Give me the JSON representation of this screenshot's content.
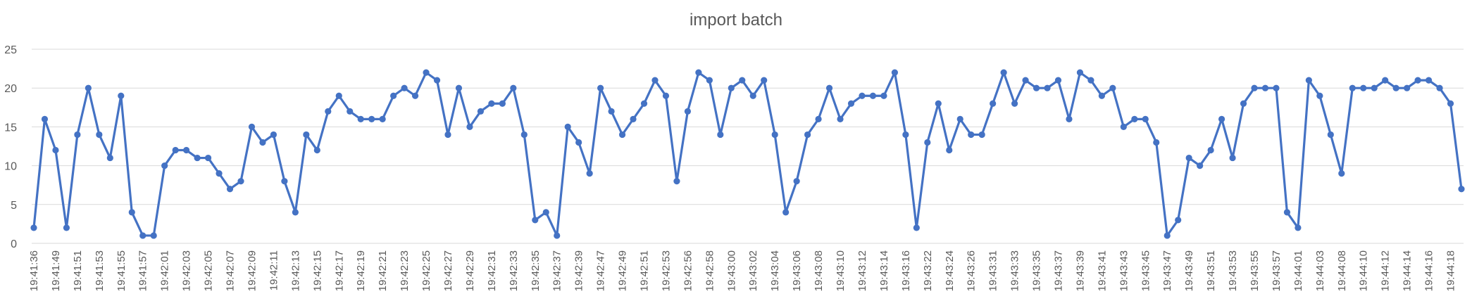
{
  "chart_data": {
    "type": "line",
    "title": "import batch",
    "xlabel": "",
    "ylabel": "",
    "ylim": [
      0,
      25
    ],
    "yticks": [
      0,
      5,
      10,
      15,
      20,
      25
    ],
    "grid": true,
    "legend": "none",
    "color": "#4472c4",
    "values": [
      2,
      16,
      12,
      2,
      14,
      20,
      14,
      11,
      19,
      4,
      1,
      1,
      10,
      12,
      12,
      11,
      11,
      9,
      7,
      8,
      15,
      13,
      14,
      8,
      4,
      14,
      12,
      17,
      19,
      17,
      16,
      16,
      16,
      19,
      20,
      19,
      22,
      21,
      14,
      20,
      15,
      17,
      18,
      18,
      20,
      14,
      3,
      4,
      1,
      15,
      13,
      9,
      20,
      17,
      14,
      16,
      18,
      21,
      19,
      8,
      17,
      22,
      21,
      14,
      20,
      21,
      19,
      21,
      14,
      4,
      8,
      14,
      16,
      20,
      16,
      18,
      19,
      19,
      19,
      22,
      14,
      2,
      13,
      18,
      12,
      16,
      14,
      14,
      18,
      22,
      18,
      21,
      20,
      20,
      21,
      16,
      22,
      21,
      19,
      20,
      15,
      16,
      16,
      13,
      1,
      3,
      11,
      10,
      12,
      16,
      11,
      18,
      20,
      20,
      20,
      4,
      2,
      21,
      19,
      14,
      9,
      20,
      20,
      20,
      21,
      20,
      20,
      21,
      21,
      20,
      18,
      7
    ],
    "x_tick_labels": [
      "19:41:36",
      "19:41:49",
      "19:41:51",
      "19:41:53",
      "19:41:55",
      "19:41:57",
      "19:42:01",
      "19:42:03",
      "19:42:05",
      "19:42:07",
      "19:42:09",
      "19:42:11",
      "19:42:13",
      "19:42:15",
      "19:42:17",
      "19:42:19",
      "19:42:21",
      "19:42:23",
      "19:42:25",
      "19:42:27",
      "19:42:29",
      "19:42:31",
      "19:42:33",
      "19:42:35",
      "19:42:37",
      "19:42:39",
      "19:42:47",
      "19:42:49",
      "19:42:51",
      "19:42:53",
      "19:42:56",
      "19:42:58",
      "19:43:00",
      "19:43:02",
      "19:43:04",
      "19:43:06",
      "19:43:08",
      "19:43:10",
      "19:43:12",
      "19:43:14",
      "19:43:16",
      "19:43:22",
      "19:43:24",
      "19:43:26",
      "19:43:31",
      "19:43:33",
      "19:43:35",
      "19:43:37",
      "19:43:39",
      "19:43:41",
      "19:43:43",
      "19:43:45",
      "19:43:47",
      "19:43:49",
      "19:43:51",
      "19:43:53",
      "19:43:55",
      "19:43:57",
      "19:44:01",
      "19:44:03",
      "19:44:08",
      "19:44:10",
      "19:44:12",
      "19:44:14",
      "19:44:16",
      "19:44:18"
    ]
  }
}
